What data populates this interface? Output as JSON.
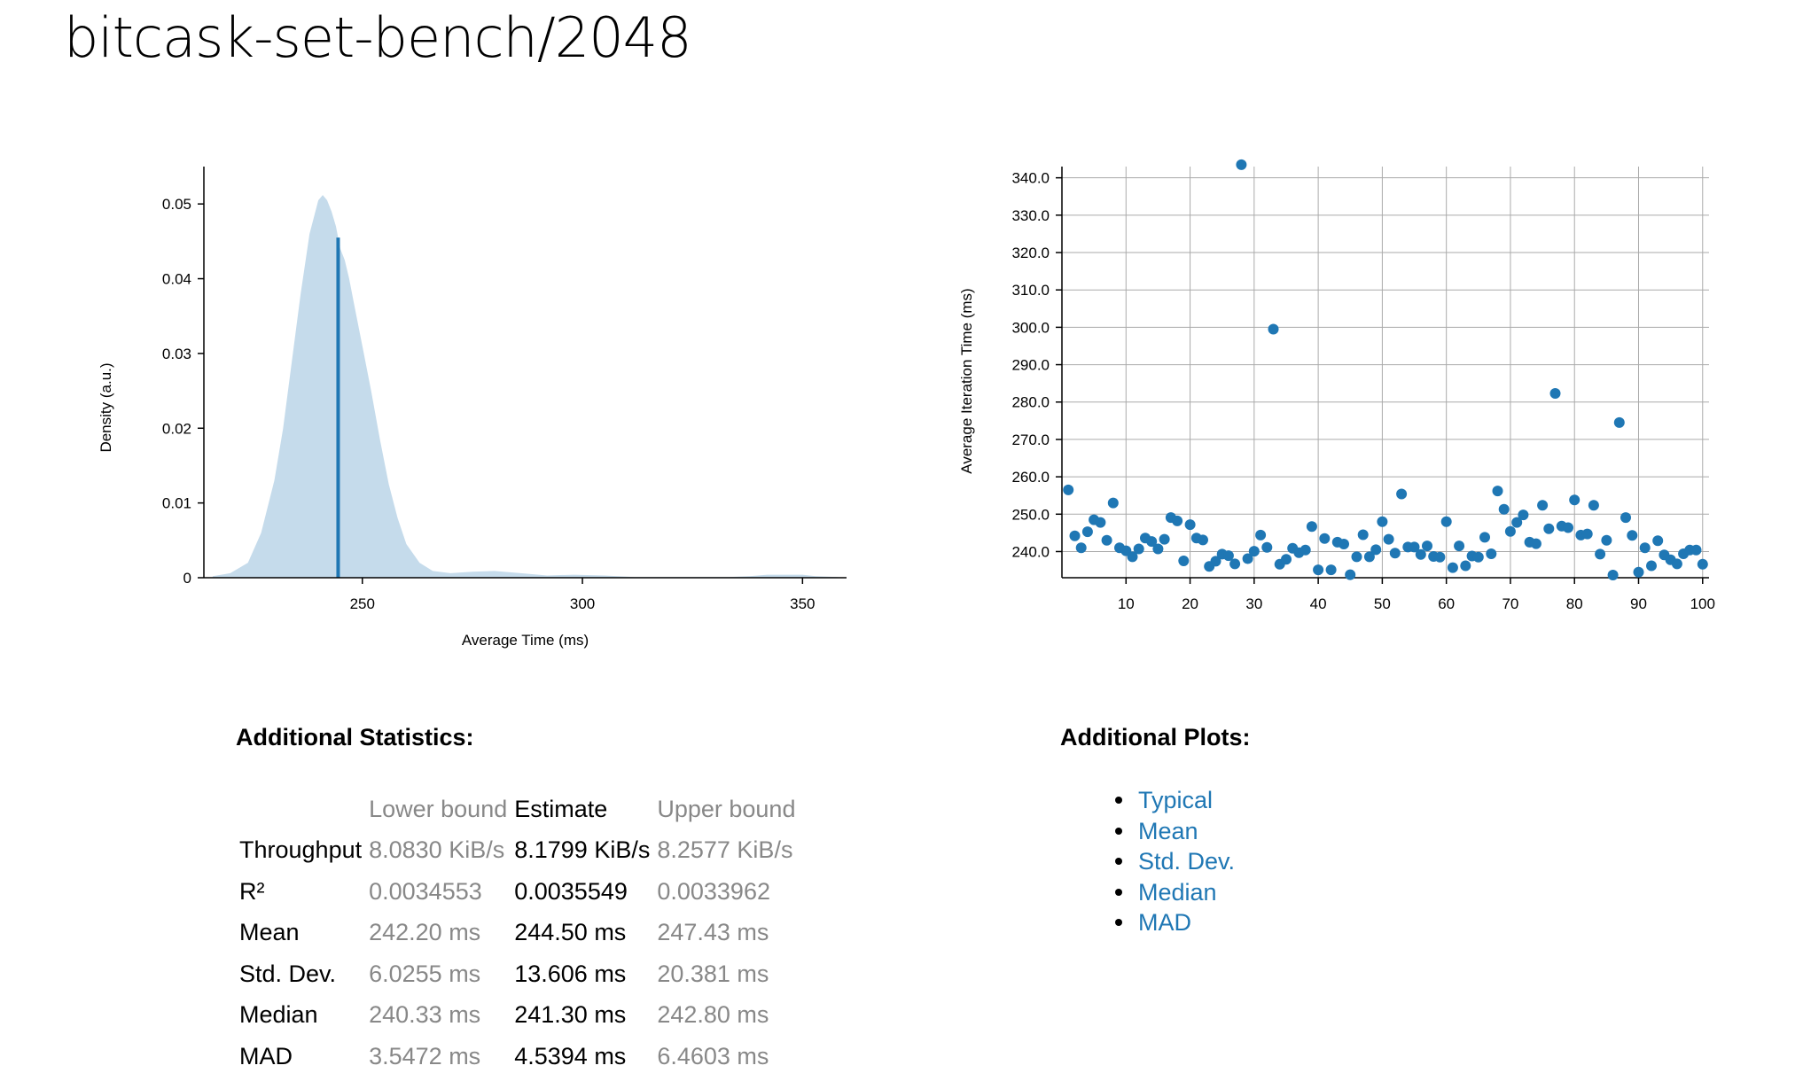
{
  "page": {
    "title": "bitcask-set-bench/2048"
  },
  "chart_data": [
    {
      "type": "area",
      "name": "pdf",
      "xlabel": "Average Time (ms)",
      "ylabel": "Density (a.u.)",
      "xlim": [
        214,
        360
      ],
      "ylim": [
        0,
        0.055
      ],
      "xticks": [
        250,
        300,
        350
      ],
      "xtick_labels": [
        "250",
        "300",
        "350"
      ],
      "yticks": [
        0,
        0.01,
        0.02,
        0.03,
        0.04,
        0.05
      ],
      "ytick_labels": [
        "0",
        "0.01",
        "0.02",
        "0.03",
        "0.04",
        "0.05"
      ],
      "fill_color": "#c5dbeb",
      "mean_line_color": "#1f77b4",
      "mean": 244.5,
      "mean_line_height": 0.0455,
      "x": [
        216,
        220,
        224,
        227,
        230,
        232,
        234,
        236,
        238,
        240,
        241,
        242,
        243,
        244,
        245,
        246,
        247,
        248,
        249,
        250,
        252,
        254,
        256,
        258,
        260,
        263,
        266,
        270,
        275,
        280,
        286,
        292,
        298,
        305,
        312,
        318,
        325,
        333,
        338,
        342,
        346,
        350,
        353,
        358
      ],
      "y": [
        0.0002,
        0.0006,
        0.002,
        0.006,
        0.013,
        0.02,
        0.029,
        0.038,
        0.046,
        0.0505,
        0.0512,
        0.0505,
        0.049,
        0.047,
        0.044,
        0.0425,
        0.04,
        0.037,
        0.034,
        0.031,
        0.025,
        0.0185,
        0.0125,
        0.008,
        0.0045,
        0.002,
        0.0009,
        0.0006,
        0.0008,
        0.0009,
        0.0006,
        0.0003,
        0.0004,
        0.0003,
        0.0001,
        0.0001,
        0.0001,
        0.0001,
        0.0002,
        0.0004,
        0.0004,
        0.0004,
        0.0002,
        0.0001
      ]
    },
    {
      "type": "scatter",
      "name": "iterations",
      "xlabel": "",
      "ylabel": "Average Iteration Time (ms)",
      "xlim": [
        0,
        101
      ],
      "ylim": [
        233,
        343
      ],
      "xticks": [
        10,
        20,
        30,
        40,
        50,
        60,
        70,
        80,
        90,
        100
      ],
      "xtick_labels": [
        "10",
        "20",
        "30",
        "40",
        "50",
        "60",
        "70",
        "80",
        "90",
        "100"
      ],
      "yticks": [
        240,
        250,
        260,
        270,
        280,
        290,
        300,
        310,
        320,
        330,
        340
      ],
      "ytick_labels": [
        "240.0",
        "250.0",
        "260.0",
        "270.0",
        "280.0",
        "290.0",
        "300.0",
        "310.0",
        "320.0",
        "330.0",
        "340.0"
      ],
      "grid": true,
      "point_color": "#1f77b4",
      "x": [
        1,
        2,
        3,
        4,
        5,
        6,
        7,
        8,
        9,
        10,
        11,
        12,
        13,
        14,
        15,
        16,
        17,
        18,
        19,
        20,
        21,
        22,
        23,
        24,
        25,
        26,
        27,
        28,
        29,
        30,
        31,
        32,
        33,
        34,
        35,
        36,
        37,
        38,
        39,
        40,
        41,
        42,
        43,
        44,
        45,
        46,
        47,
        48,
        49,
        50,
        51,
        52,
        53,
        54,
        55,
        56,
        57,
        58,
        59,
        60,
        61,
        62,
        63,
        64,
        65,
        66,
        67,
        68,
        69,
        70,
        71,
        72,
        73,
        74,
        75,
        76,
        77,
        78,
        79,
        80,
        81,
        82,
        83,
        84,
        85,
        86,
        87,
        88,
        89,
        90,
        91,
        92,
        93,
        94,
        95,
        96,
        97,
        98,
        99,
        100
      ],
      "y": [
        256.5,
        244.2,
        241,
        245.3,
        248.5,
        247.8,
        243,
        253,
        241,
        240.2,
        238.6,
        240.7,
        243.6,
        242.7,
        240.7,
        243.3,
        249.1,
        248.2,
        237.5,
        247.2,
        243.6,
        243.1,
        236,
        237.4,
        239.3,
        238.9,
        236.7,
        343.5,
        238.1,
        240.1,
        244.4,
        241.1,
        299.5,
        236.6,
        237.9,
        240.9,
        239.7,
        240.4,
        246.7,
        235.1,
        243.5,
        235.1,
        242.5,
        242,
        233.8,
        238.6,
        244.5,
        238.6,
        240.5,
        248,
        243.3,
        239.6,
        255.4,
        241.2,
        241.2,
        239.2,
        241.5,
        238.7,
        238.5,
        248,
        235.7,
        241.5,
        236.2,
        238.8,
        238.5,
        243.8,
        239.4,
        256.2,
        251.3,
        245.4,
        247.8,
        249.8,
        242.5,
        242.1,
        252.4,
        246.1,
        282.3,
        246.8,
        246.4,
        253.8,
        244.4,
        244.7,
        252.4,
        239.3,
        243,
        233.7,
        274.5,
        249.1,
        244.3,
        234.5,
        241,
        236.2,
        242.9,
        239.1,
        237.8,
        236.7,
        239.4,
        240.4,
        240.4,
        236.6
      ]
    }
  ],
  "stats": {
    "heading": "Additional Statistics:",
    "columns": [
      "",
      "Lower bound",
      "Estimate",
      "Upper bound"
    ],
    "rows": [
      {
        "label": "Throughput",
        "lower": "8.0830 KiB/s",
        "estimate": "8.1799 KiB/s",
        "upper": "8.2577 KiB/s"
      },
      {
        "label": "R²",
        "lower": "0.0034553",
        "estimate": "0.0035549",
        "upper": "0.0033962"
      },
      {
        "label": "Mean",
        "lower": "242.20 ms",
        "estimate": "244.50 ms",
        "upper": "247.43 ms"
      },
      {
        "label": "Std. Dev.",
        "lower": "6.0255 ms",
        "estimate": "13.606 ms",
        "upper": "20.381 ms"
      },
      {
        "label": "Median",
        "lower": "240.33 ms",
        "estimate": "241.30 ms",
        "upper": "242.80 ms"
      },
      {
        "label": "MAD",
        "lower": "3.5472 ms",
        "estimate": "4.5394 ms",
        "upper": "6.4603 ms"
      }
    ]
  },
  "plots": {
    "heading": "Additional Plots:",
    "links": [
      "Typical",
      "Mean",
      "Std. Dev.",
      "Median",
      "MAD"
    ]
  }
}
